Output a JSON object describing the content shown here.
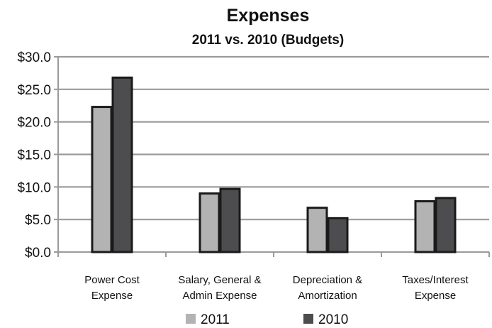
{
  "chart_data": {
    "type": "bar",
    "title": "Expenses",
    "subtitle": "2011 vs. 2010 (Budgets)",
    "xlabel": "",
    "ylabel": "",
    "ylim": [
      0,
      30
    ],
    "yticks": [
      "$0.0",
      "$5.0",
      "$10.0",
      "$15.0",
      "$20.0",
      "$25.0",
      "$30.0"
    ],
    "ytick_values": [
      0,
      5,
      10,
      15,
      20,
      25,
      30
    ],
    "grid": true,
    "legend_position": "bottom",
    "categories": [
      [
        "Power Cost",
        "Expense"
      ],
      [
        "Salary, General &",
        "Admin Expense"
      ],
      [
        "Depreciation &",
        "Amortization"
      ],
      [
        "Taxes/Interest",
        "Expense"
      ]
    ],
    "series": [
      {
        "name": "2011",
        "color": "#b3b3b4",
        "values": [
          22.3,
          9.0,
          6.8,
          7.8
        ]
      },
      {
        "name": "2010",
        "color": "#4d4d4f",
        "values": [
          26.8,
          9.7,
          5.2,
          8.3
        ]
      }
    ]
  }
}
